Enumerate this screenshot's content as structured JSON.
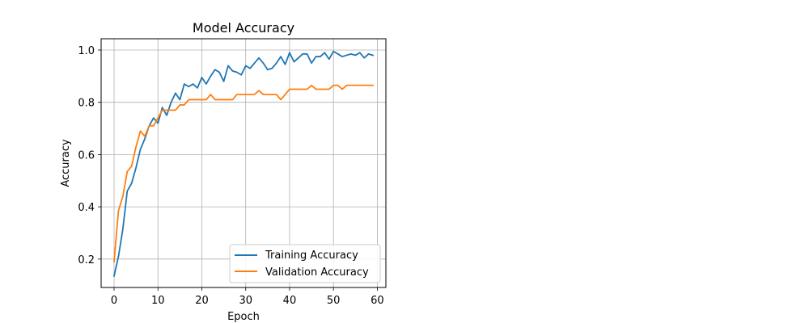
{
  "chart_data": {
    "type": "line",
    "title": "Model Accuracy",
    "xlabel": "Epoch",
    "ylabel": "Accuracy",
    "xlim": [
      -2.95,
      61.95
    ],
    "ylim": [
      0.0913,
      1.0432
    ],
    "xticks": [
      0,
      10,
      20,
      30,
      40,
      50,
      60
    ],
    "yticks": [
      0.2,
      0.4,
      0.6,
      0.8,
      1.0
    ],
    "xtick_labels": [
      "0",
      "10",
      "20",
      "30",
      "40",
      "50",
      "60"
    ],
    "ytick_labels": [
      "0.2",
      "0.4",
      "0.6",
      "0.8",
      "1.0"
    ],
    "grid": true,
    "legend_position": "lower-right",
    "series": [
      {
        "name": "Training Accuracy",
        "color": "#1f77b4",
        "x": [
          0,
          1,
          2,
          3,
          4,
          5,
          6,
          7,
          8,
          9,
          10,
          11,
          12,
          13,
          14,
          15,
          16,
          17,
          18,
          19,
          20,
          21,
          22,
          23,
          24,
          25,
          26,
          27,
          28,
          29,
          30,
          31,
          32,
          33,
          34,
          35,
          36,
          37,
          38,
          39,
          40,
          41,
          42,
          43,
          44,
          45,
          46,
          47,
          48,
          49,
          50,
          51,
          52,
          53,
          54,
          55,
          56,
          57,
          58,
          59
        ],
        "values": [
          0.135,
          0.21,
          0.315,
          0.46,
          0.49,
          0.55,
          0.62,
          0.66,
          0.71,
          0.74,
          0.72,
          0.78,
          0.75,
          0.8,
          0.835,
          0.81,
          0.87,
          0.86,
          0.87,
          0.855,
          0.895,
          0.87,
          0.9,
          0.925,
          0.915,
          0.88,
          0.94,
          0.92,
          0.915,
          0.905,
          0.94,
          0.93,
          0.95,
          0.97,
          0.95,
          0.925,
          0.93,
          0.95,
          0.975,
          0.945,
          0.99,
          0.955,
          0.97,
          0.985,
          0.985,
          0.95,
          0.975,
          0.975,
          0.99,
          0.965,
          0.995,
          0.985,
          0.975,
          0.98,
          0.985,
          0.98,
          0.99,
          0.97,
          0.985,
          0.98
        ]
      },
      {
        "name": "Validation Accuracy",
        "color": "#ff7f0e",
        "x": [
          0,
          1,
          2,
          3,
          4,
          5,
          6,
          7,
          8,
          9,
          10,
          11,
          12,
          13,
          14,
          15,
          16,
          17,
          18,
          19,
          20,
          21,
          22,
          23,
          24,
          25,
          26,
          27,
          28,
          29,
          30,
          31,
          32,
          33,
          34,
          35,
          36,
          37,
          38,
          39,
          40,
          41,
          42,
          43,
          44,
          45,
          46,
          47,
          48,
          49,
          50,
          51,
          52,
          53,
          54,
          55,
          56,
          57,
          58,
          59
        ],
        "values": [
          0.19,
          0.385,
          0.44,
          0.535,
          0.555,
          0.63,
          0.69,
          0.67,
          0.71,
          0.71,
          0.74,
          0.77,
          0.77,
          0.77,
          0.77,
          0.79,
          0.79,
          0.81,
          0.81,
          0.81,
          0.81,
          0.81,
          0.83,
          0.81,
          0.81,
          0.81,
          0.81,
          0.81,
          0.83,
          0.83,
          0.83,
          0.83,
          0.83,
          0.845,
          0.83,
          0.83,
          0.83,
          0.83,
          0.81,
          0.83,
          0.85,
          0.85,
          0.85,
          0.85,
          0.85,
          0.865,
          0.85,
          0.85,
          0.85,
          0.85,
          0.865,
          0.865,
          0.85,
          0.865,
          0.865,
          0.865,
          0.865,
          0.865,
          0.865,
          0.865
        ]
      }
    ]
  }
}
